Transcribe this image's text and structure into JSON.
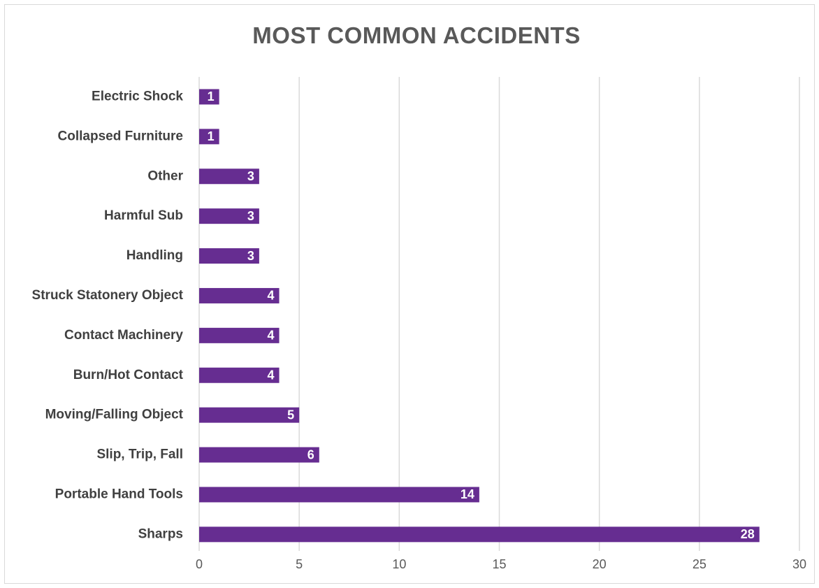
{
  "chart_data": {
    "type": "bar",
    "orientation": "horizontal",
    "title": "MOST COMMON ACCIDENTS",
    "xlabel": "",
    "ylabel": "",
    "xlim": [
      0,
      30
    ],
    "x_ticks": [
      0,
      5,
      10,
      15,
      20,
      25,
      30
    ],
    "grid": "vertical",
    "legend": "none",
    "bar_color": "#662d91",
    "categories": [
      "Electric Shock",
      "Collapsed Furniture",
      "Other",
      "Harmful Sub",
      "Handling",
      "Struck Statonery Object",
      "Contact Machinery",
      "Burn/Hot Contact",
      "Moving/Falling Object",
      "Slip, Trip, Fall",
      "Portable Hand Tools",
      "Sharps"
    ],
    "values": [
      1,
      1,
      3,
      3,
      3,
      4,
      4,
      4,
      5,
      6,
      14,
      28
    ],
    "data_labels": true
  }
}
